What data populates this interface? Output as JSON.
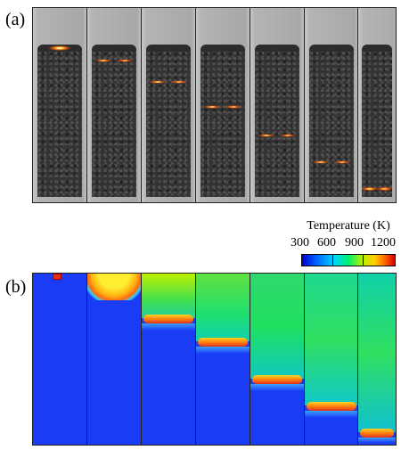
{
  "panels": {
    "photo_label": "(a)",
    "sim_label": "(b)"
  },
  "colorbar": {
    "title": "Temperature (K)",
    "ticks": [
      "300",
      "600",
      "900",
      "1200"
    ],
    "colors": [
      "#0000c8",
      "#00d8ff",
      "#00f070",
      "#ffd000",
      "#d00000"
    ]
  },
  "photo_tubes": {
    "count": 7,
    "glow_color": "#ff8a1c",
    "bed_color": "#333333"
  },
  "sim_tubes": {
    "count": 7,
    "cold_color": "#1a3cf5",
    "hot_color": "#ff7a10"
  }
}
